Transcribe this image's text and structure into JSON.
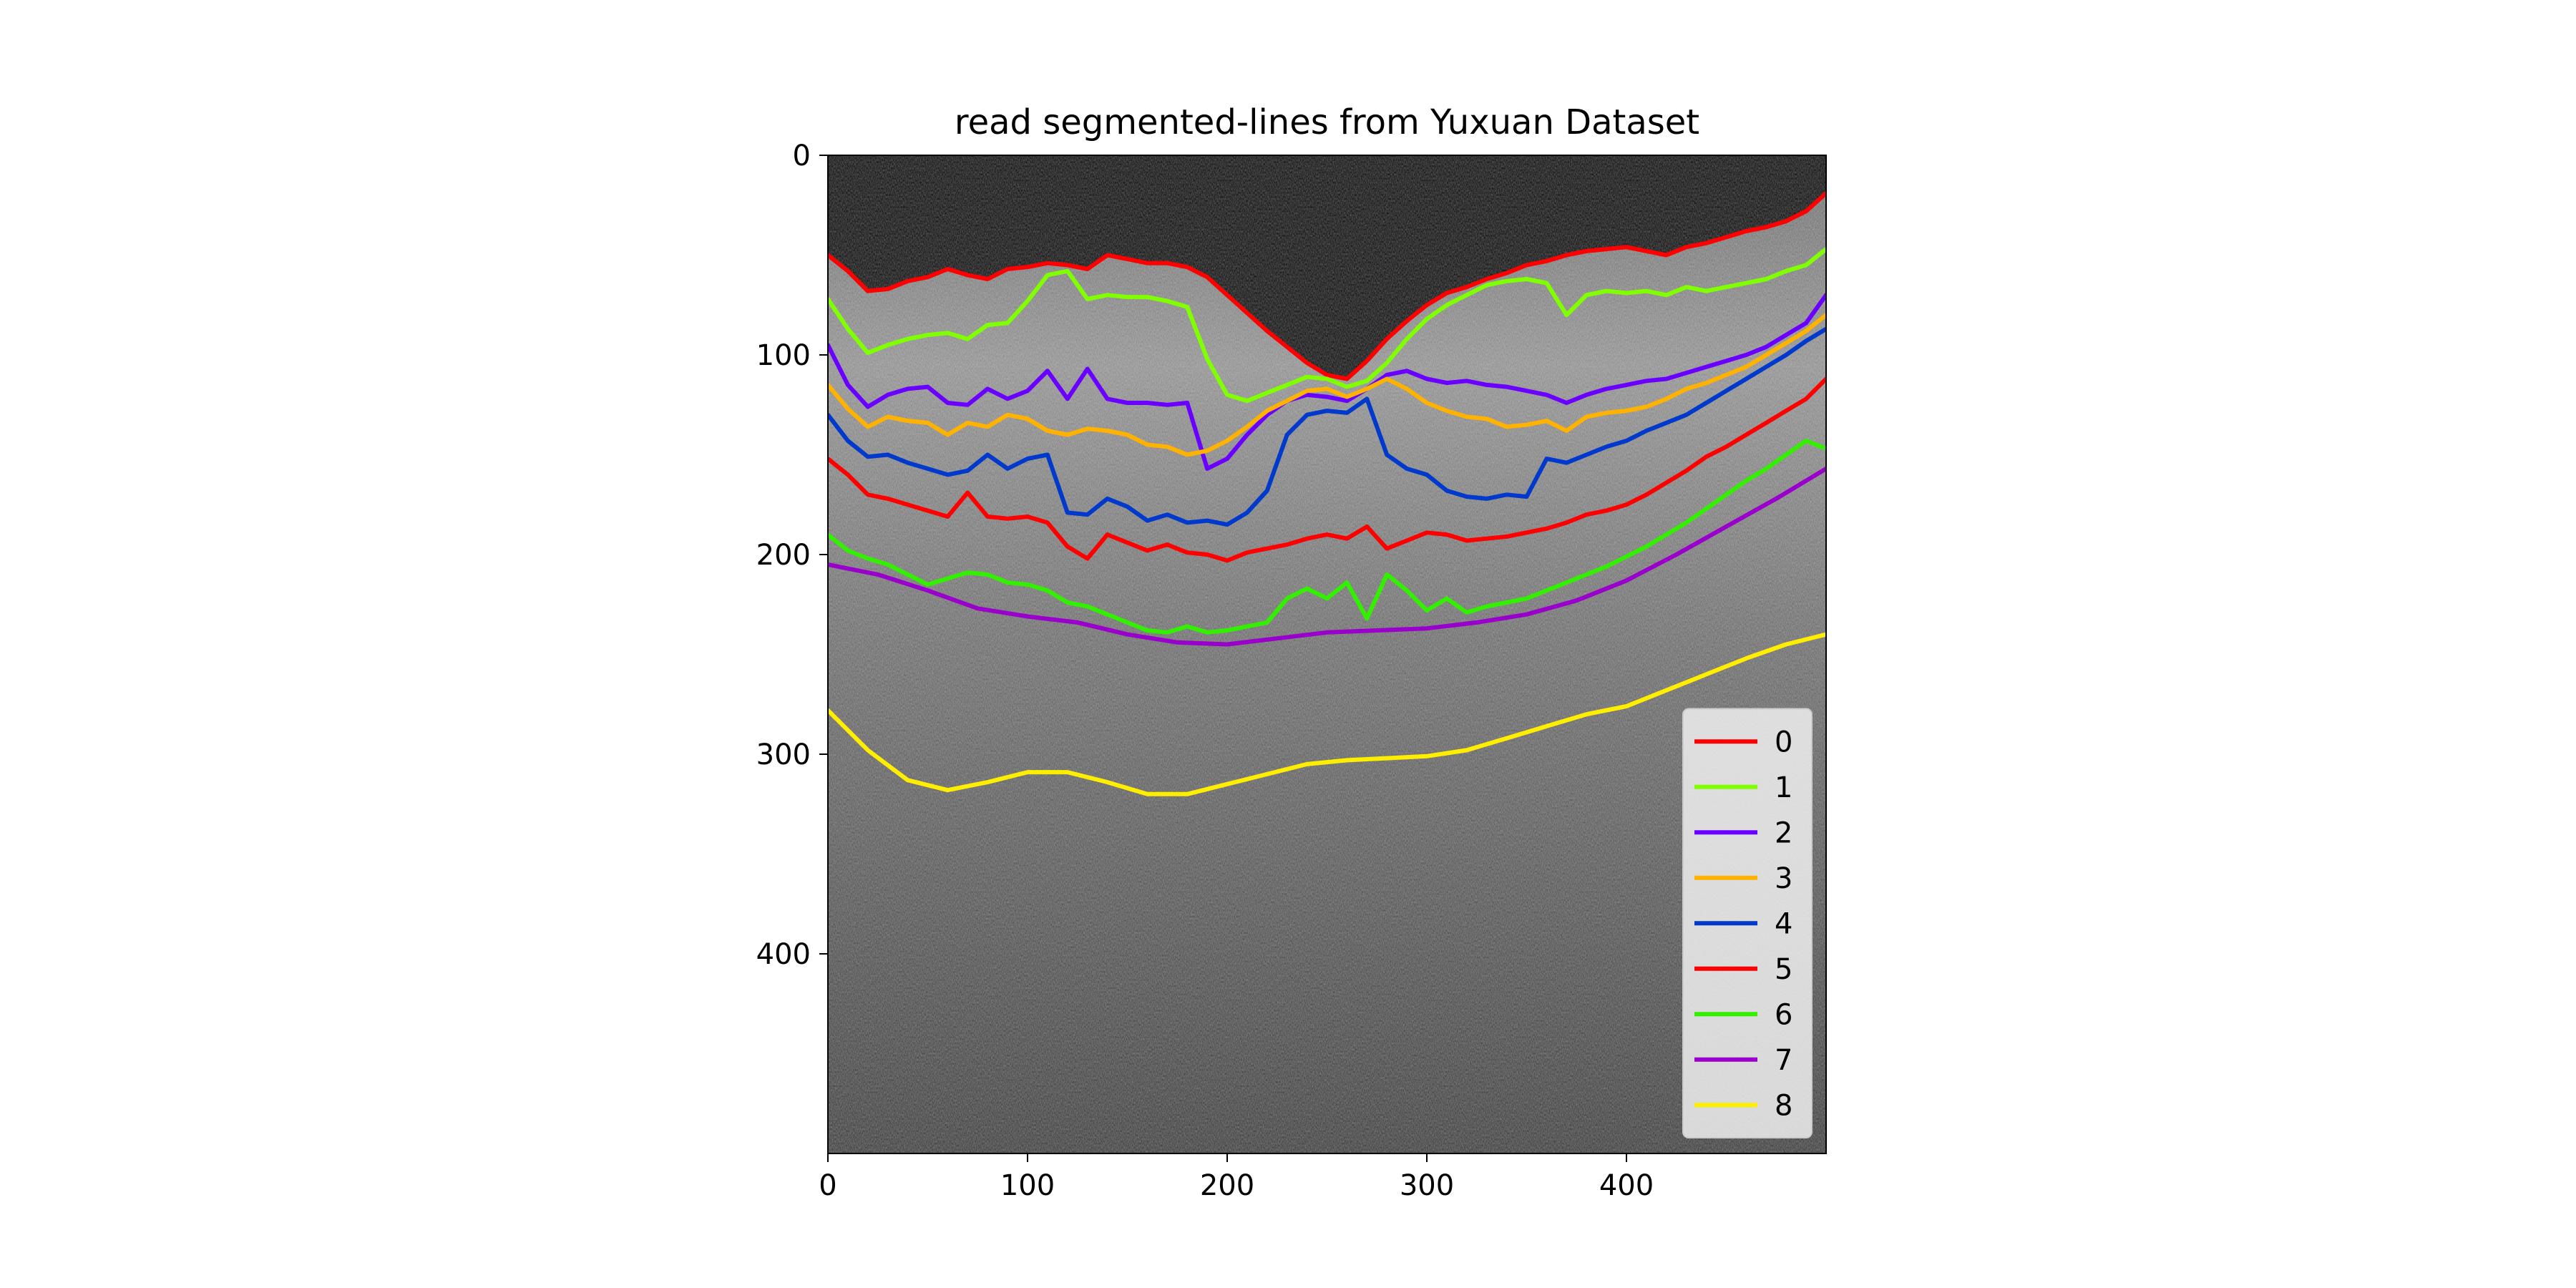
{
  "chart_data": {
    "type": "line",
    "title": "read segmented-lines from Yuxuan Dataset",
    "xlabel": "",
    "ylabel": "",
    "xlim": [
      0,
      500
    ],
    "ylim": [
      500,
      0
    ],
    "y_inverted": true,
    "x_ticks": [
      0,
      100,
      200,
      300,
      400
    ],
    "y_ticks": [
      0,
      100,
      200,
      300,
      400
    ],
    "background": "grayscale OCT retinal B-scan image",
    "grid": false,
    "legend_position": "lower right",
    "series": [
      {
        "name": "0",
        "color": "#ff0000",
        "x": [
          0,
          10,
          20,
          30,
          40,
          50,
          60,
          70,
          80,
          90,
          100,
          110,
          120,
          130,
          140,
          150,
          160,
          170,
          180,
          190,
          200,
          210,
          220,
          230,
          240,
          250,
          260,
          270,
          280,
          290,
          300,
          310,
          320,
          330,
          340,
          350,
          360,
          370,
          380,
          390,
          400,
          410,
          420,
          430,
          440,
          450,
          460,
          470,
          480,
          490,
          500
        ],
        "y": [
          50,
          58,
          68,
          67,
          63,
          61,
          57,
          60,
          62,
          57,
          56,
          54,
          55,
          57,
          50,
          52,
          54,
          54,
          56,
          61,
          70,
          79,
          88,
          96,
          104,
          110,
          112,
          103,
          92,
          83,
          75,
          69,
          66,
          62,
          59,
          55,
          53,
          50,
          48,
          47,
          46,
          48,
          50,
          46,
          44,
          41,
          38,
          36,
          33,
          28,
          19
        ]
      },
      {
        "name": "1",
        "color": "#80ff00",
        "x": [
          0,
          10,
          20,
          30,
          40,
          50,
          60,
          70,
          80,
          90,
          100,
          110,
          120,
          130,
          140,
          150,
          160,
          170,
          180,
          190,
          200,
          210,
          220,
          230,
          240,
          250,
          260,
          270,
          280,
          290,
          300,
          310,
          320,
          330,
          340,
          350,
          360,
          370,
          380,
          390,
          400,
          410,
          420,
          430,
          440,
          450,
          460,
          470,
          480,
          490,
          500
        ],
        "y": [
          72,
          87,
          99,
          95,
          92,
          90,
          89,
          92,
          85,
          84,
          73,
          60,
          58,
          72,
          70,
          71,
          71,
          73,
          76,
          102,
          120,
          123,
          119,
          115,
          111,
          112,
          116,
          113,
          104,
          92,
          82,
          75,
          70,
          65,
          63,
          62,
          64,
          80,
          70,
          68,
          69,
          68,
          70,
          66,
          68,
          66,
          64,
          62,
          58,
          55,
          47
        ]
      },
      {
        "name": "2",
        "color": "#6a00ff",
        "x": [
          0,
          10,
          20,
          30,
          40,
          50,
          60,
          70,
          80,
          90,
          100,
          110,
          120,
          130,
          140,
          150,
          160,
          170,
          180,
          190,
          200,
          210,
          220,
          230,
          240,
          250,
          260,
          270,
          280,
          290,
          300,
          310,
          320,
          330,
          340,
          350,
          360,
          370,
          380,
          390,
          400,
          410,
          420,
          430,
          440,
          450,
          460,
          470,
          480,
          490,
          500
        ],
        "y": [
          95,
          115,
          126,
          120,
          117,
          116,
          124,
          125,
          117,
          122,
          118,
          108,
          122,
          107,
          122,
          124,
          124,
          125,
          124,
          157,
          152,
          140,
          130,
          123,
          120,
          121,
          123,
          117,
          110,
          108,
          112,
          114,
          113,
          115,
          116,
          118,
          120,
          124,
          120,
          117,
          115,
          113,
          112,
          109,
          106,
          103,
          100,
          96,
          90,
          84,
          70
        ]
      },
      {
        "name": "3",
        "color": "#ffb300",
        "x": [
          0,
          10,
          20,
          30,
          40,
          50,
          60,
          70,
          80,
          90,
          100,
          110,
          120,
          130,
          140,
          150,
          160,
          170,
          180,
          190,
          200,
          210,
          220,
          230,
          240,
          250,
          260,
          270,
          280,
          290,
          300,
          310,
          320,
          330,
          340,
          350,
          360,
          370,
          380,
          390,
          400,
          410,
          420,
          430,
          440,
          450,
          460,
          470,
          480,
          490,
          500
        ],
        "y": [
          115,
          127,
          136,
          131,
          133,
          134,
          140,
          134,
          136,
          130,
          132,
          138,
          140,
          137,
          138,
          140,
          145,
          146,
          150,
          148,
          143,
          136,
          128,
          123,
          118,
          117,
          121,
          117,
          112,
          117,
          124,
          128,
          131,
          132,
          136,
          135,
          133,
          138,
          131,
          129,
          128,
          126,
          122,
          117,
          114,
          110,
          106,
          100,
          94,
          88,
          80
        ]
      },
      {
        "name": "4",
        "color": "#0039cc",
        "x": [
          0,
          10,
          20,
          30,
          40,
          50,
          60,
          70,
          80,
          90,
          100,
          110,
          120,
          130,
          140,
          150,
          160,
          170,
          180,
          190,
          200,
          210,
          220,
          230,
          240,
          250,
          260,
          270,
          280,
          290,
          300,
          310,
          320,
          330,
          340,
          350,
          360,
          370,
          380,
          390,
          400,
          410,
          420,
          430,
          440,
          450,
          460,
          470,
          480,
          490,
          500
        ],
        "y": [
          130,
          143,
          151,
          150,
          154,
          157,
          160,
          158,
          150,
          157,
          152,
          150,
          179,
          180,
          172,
          176,
          183,
          180,
          184,
          183,
          185,
          179,
          168,
          140,
          130,
          128,
          129,
          122,
          150,
          157,
          160,
          168,
          171,
          172,
          170,
          171,
          152,
          154,
          150,
          146,
          143,
          138,
          134,
          130,
          124,
          118,
          112,
          106,
          100,
          93,
          87
        ]
      },
      {
        "name": "5",
        "color": "#ff0000",
        "x": [
          0,
          10,
          20,
          30,
          40,
          50,
          60,
          70,
          80,
          90,
          100,
          110,
          120,
          130,
          140,
          150,
          160,
          170,
          180,
          190,
          200,
          210,
          220,
          230,
          240,
          250,
          260,
          270,
          280,
          290,
          300,
          310,
          320,
          330,
          340,
          350,
          360,
          370,
          380,
          390,
          400,
          410,
          420,
          430,
          440,
          450,
          460,
          470,
          480,
          490,
          500
        ],
        "y": [
          152,
          160,
          170,
          172,
          175,
          178,
          181,
          169,
          181,
          182,
          181,
          184,
          196,
          202,
          190,
          194,
          198,
          195,
          199,
          200,
          203,
          199,
          197,
          195,
          192,
          190,
          192,
          186,
          197,
          193,
          189,
          190,
          193,
          192,
          191,
          189,
          187,
          184,
          180,
          178,
          175,
          170,
          164,
          158,
          151,
          146,
          140,
          134,
          128,
          122,
          112
        ]
      },
      {
        "name": "6",
        "color": "#33f000",
        "x": [
          0,
          10,
          20,
          30,
          40,
          50,
          60,
          70,
          80,
          90,
          100,
          110,
          120,
          130,
          140,
          150,
          160,
          170,
          180,
          190,
          200,
          210,
          220,
          230,
          240,
          250,
          260,
          270,
          280,
          290,
          300,
          310,
          320,
          330,
          340,
          350,
          360,
          370,
          380,
          390,
          400,
          410,
          420,
          430,
          440,
          450,
          460,
          470,
          480,
          490,
          500
        ],
        "y": [
          190,
          198,
          202,
          205,
          210,
          215,
          212,
          209,
          210,
          214,
          215,
          218,
          224,
          226,
          230,
          234,
          238,
          239,
          236,
          239,
          238,
          236,
          234,
          222,
          217,
          222,
          214,
          232,
          210,
          218,
          228,
          222,
          229,
          226,
          224,
          222,
          218,
          214,
          210,
          206,
          201,
          196,
          190,
          184,
          177,
          170,
          163,
          157,
          150,
          143,
          147
        ]
      },
      {
        "name": "7",
        "color": "#9900cc",
        "x": [
          0,
          25,
          50,
          75,
          100,
          125,
          150,
          175,
          200,
          225,
          250,
          275,
          300,
          325,
          350,
          375,
          400,
          425,
          450,
          475,
          500
        ],
        "y": [
          205,
          210,
          218,
          227,
          231,
          234,
          240,
          244,
          245,
          242,
          239,
          238,
          237,
          234,
          230,
          223,
          213,
          200,
          186,
          172,
          157
        ]
      },
      {
        "name": "8",
        "color": "#ffee00",
        "x": [
          0,
          20,
          40,
          60,
          80,
          100,
          120,
          140,
          160,
          180,
          200,
          220,
          240,
          260,
          280,
          300,
          320,
          340,
          360,
          380,
          400,
          420,
          440,
          460,
          480,
          500
        ],
        "y": [
          278,
          298,
          313,
          318,
          314,
          309,
          309,
          314,
          320,
          320,
          315,
          310,
          305,
          303,
          302,
          301,
          298,
          292,
          286,
          280,
          276,
          268,
          260,
          252,
          245,
          240
        ]
      }
    ]
  }
}
